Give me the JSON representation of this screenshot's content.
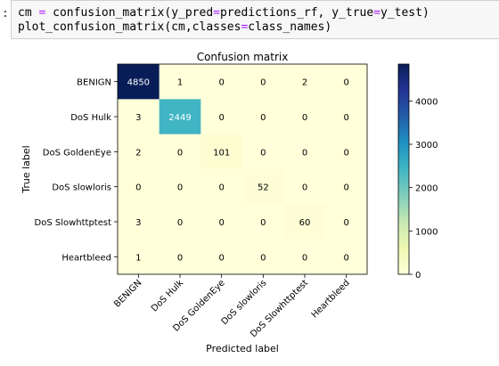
{
  "notebook": {
    "prompt": ":",
    "code_lines": [
      [
        {
          "t": "cm ",
          "c": "name"
        },
        {
          "t": "=",
          "c": "op"
        },
        {
          "t": " confusion_matrix(y_pred",
          "c": "name"
        },
        {
          "t": "=",
          "c": "op"
        },
        {
          "t": "predictions_rf, y_true",
          "c": "name"
        },
        {
          "t": "=",
          "c": "op"
        },
        {
          "t": "y_test)",
          "c": "name"
        }
      ],
      [
        {
          "t": "plot_confusion_matrix(cm,classes",
          "c": "name"
        },
        {
          "t": "=",
          "c": "op"
        },
        {
          "t": "class_names)",
          "c": "name"
        }
      ]
    ]
  },
  "chart_data": {
    "type": "heatmap",
    "title": "Confusion matrix",
    "xlabel": "Predicted label",
    "ylabel": "True label",
    "categories": [
      "BENIGN",
      "DoS Hulk",
      "DoS GoldenEye",
      "DoS slowloris",
      "DoS Slowhttptest",
      "Heartbleed"
    ],
    "matrix": [
      [
        4850,
        1,
        0,
        0,
        2,
        0
      ],
      [
        3,
        2449,
        0,
        0,
        0,
        0
      ],
      [
        2,
        0,
        101,
        0,
        0,
        0
      ],
      [
        0,
        0,
        0,
        52,
        0,
        0
      ],
      [
        3,
        0,
        0,
        0,
        60,
        0
      ],
      [
        1,
        0,
        0,
        0,
        0,
        0
      ]
    ],
    "cell_labels": [
      [
        "4850",
        "1",
        "0",
        "0",
        "2",
        "0"
      ],
      [
        "3",
        "2449",
        "0",
        "0",
        "0",
        "0"
      ],
      [
        "2",
        "0",
        "101",
        "0",
        "0",
        "0"
      ],
      [
        "0",
        "0",
        "0",
        "52",
        "0",
        "0"
      ],
      [
        "3",
        "0",
        "0",
        "0",
        "60",
        "0"
      ],
      [
        "1",
        "0",
        "0",
        "0",
        "0",
        "0"
      ]
    ],
    "colormap": "YlGnBu",
    "colorbar": {
      "range": [
        0,
        4850
      ],
      "ticks": [
        0,
        1000,
        2000,
        3000,
        4000
      ],
      "tick_labels": [
        "0",
        "1000",
        "2000",
        "3000",
        "4000"
      ]
    },
    "xtick_rotation": 45,
    "grid": false,
    "text_color_dark": "#000000",
    "text_color_light": "#ffffff"
  }
}
